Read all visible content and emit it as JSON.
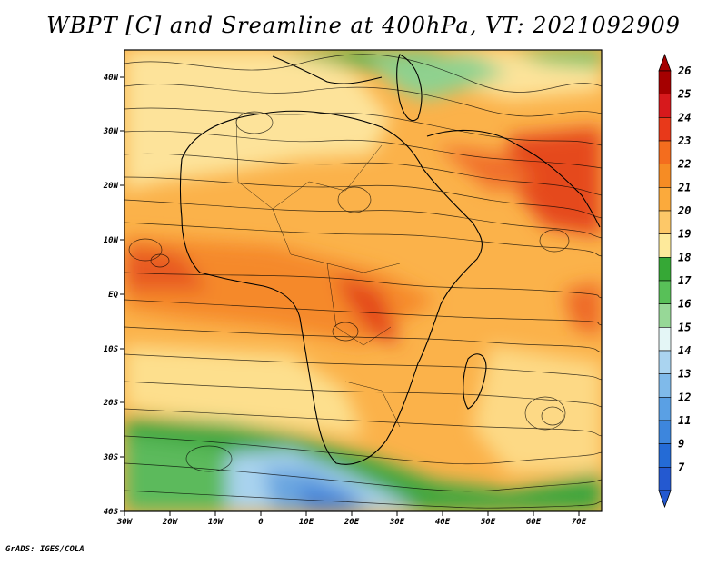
{
  "title": "WBPT [C] and Sreamline at 400hPa, VT: 2021092909",
  "footer": "GrADS: IGES/COLA",
  "axes": {
    "lat_labels": [
      "40N",
      "30N",
      "20N",
      "10N",
      "EQ",
      "10S",
      "20S",
      "30S",
      "40S"
    ],
    "lon_labels": [
      "30W",
      "20W",
      "10W",
      "0",
      "10E",
      "20E",
      "30E",
      "40E",
      "50E",
      "60E",
      "70E"
    ]
  },
  "colorbar": {
    "labels": [
      "26",
      "25",
      "24",
      "23",
      "22",
      "21",
      "20",
      "19",
      "18",
      "17",
      "16",
      "15",
      "14",
      "13",
      "12",
      "11",
      "9",
      "7"
    ],
    "colors": [
      "#a50000",
      "#d7191c",
      "#e8391a",
      "#f46d1e",
      "#f68c24",
      "#fbaa3c",
      "#fdc868",
      "#feea9b",
      "#36a836",
      "#58c058",
      "#97d897",
      "#e4f6f6",
      "#aad4f0",
      "#7fbaea",
      "#5aa0e4",
      "#3d86dd",
      "#246bd6",
      "#2459d0"
    ]
  },
  "colors": {
    "background": "#ffffff",
    "text": "#000000",
    "streamline": "#000000"
  }
}
